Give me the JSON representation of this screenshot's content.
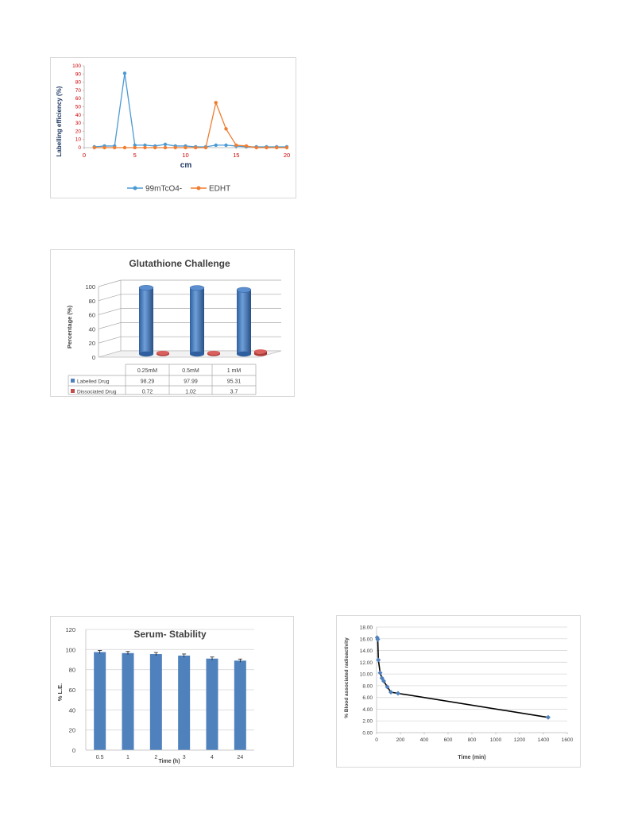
{
  "colors": {
    "tco4": "#4a9ad4",
    "edht": "#ef7d31",
    "tick_red": "#cc0000",
    "bar_blue": "#4f81bd",
    "bar_red": "#c0504d",
    "axis_dark": "#1f3864",
    "grid": "#d9d9d9"
  },
  "chart_data": [
    {
      "type": "line",
      "title": "",
      "xlabel": "cm",
      "ylabel": "Labelling efficiency (%)",
      "xlim": [
        0,
        20
      ],
      "ylim": [
        0,
        100
      ],
      "xticks": [
        "0",
        "5",
        "10",
        "15",
        "20"
      ],
      "yticks": [
        "0",
        "10",
        "20",
        "30",
        "40",
        "50",
        "60",
        "70",
        "80",
        "90",
        "100"
      ],
      "legend_position": "bottom",
      "series": [
        {
          "name": "99mTcO4-",
          "x": [
            1,
            2,
            3,
            4,
            5,
            6,
            7,
            8,
            9,
            10,
            11,
            12,
            13,
            14,
            15,
            16,
            17,
            18,
            19,
            20
          ],
          "y": [
            1,
            2,
            2,
            91,
            3,
            3,
            2,
            4,
            2,
            2,
            1,
            1,
            3,
            3,
            2,
            1,
            1,
            1,
            1,
            1
          ]
        },
        {
          "name": "EDHT",
          "x": [
            1,
            2,
            3,
            4,
            5,
            6,
            7,
            8,
            9,
            10,
            11,
            12,
            13,
            14,
            15,
            16,
            17,
            18,
            19,
            20
          ],
          "y": [
            0,
            0,
            0,
            0,
            0,
            0,
            0,
            0,
            0,
            0,
            0,
            0,
            55,
            23,
            3,
            2,
            0,
            0,
            0,
            0
          ]
        }
      ]
    },
    {
      "type": "bar",
      "title": "Glutathione Challenge",
      "ylabel": "Percentage (%)",
      "ylim": [
        0,
        100
      ],
      "yticks": [
        "0",
        "20",
        "40",
        "60",
        "80",
        "100"
      ],
      "categories": [
        "0.25mM",
        "0.5mM",
        "1 mM"
      ],
      "series": [
        {
          "name": "Labelled Drug",
          "values": [
            98.29,
            97.99,
            95.31
          ],
          "labels": [
            "98.29",
            "97.99",
            "95.31"
          ]
        },
        {
          "name": "Dissociated Drug",
          "values": [
            0.72,
            1.02,
            3.7
          ],
          "labels": [
            "0.72",
            "1.02",
            "3.7"
          ]
        }
      ]
    },
    {
      "type": "bar",
      "title": "Serum- Stability",
      "xlabel": "Time (h)",
      "ylabel": "% L.E.",
      "ylim": [
        0,
        120
      ],
      "yticks": [
        "0",
        "20",
        "40",
        "60",
        "80",
        "100",
        "120"
      ],
      "grid": true,
      "categories": [
        "0.5",
        "1",
        "2",
        "3",
        "4",
        "24"
      ],
      "values": [
        97.5,
        96.5,
        95.5,
        94,
        91,
        89
      ]
    },
    {
      "type": "line",
      "title": "",
      "xlabel": "Time (min)",
      "ylabel": "% Blood associated radioactivity",
      "xlim": [
        0,
        1600
      ],
      "ylim": [
        0,
        18
      ],
      "xticks": [
        "0",
        "200",
        "400",
        "600",
        "800",
        "1000",
        "1200",
        "1400",
        "1600"
      ],
      "yticks": [
        "0.00",
        "2.00",
        "4.00",
        "6.00",
        "8.00",
        "10.00",
        "12.00",
        "14.00",
        "16.00",
        "18.00"
      ],
      "grid": true,
      "x": [
        5,
        10,
        15,
        30,
        45,
        60,
        90,
        120,
        180,
        1440
      ],
      "y": [
        16.2,
        15.9,
        12.4,
        10.2,
        9.3,
        8.8,
        7.8,
        6.9,
        6.7,
        2.6
      ]
    }
  ]
}
